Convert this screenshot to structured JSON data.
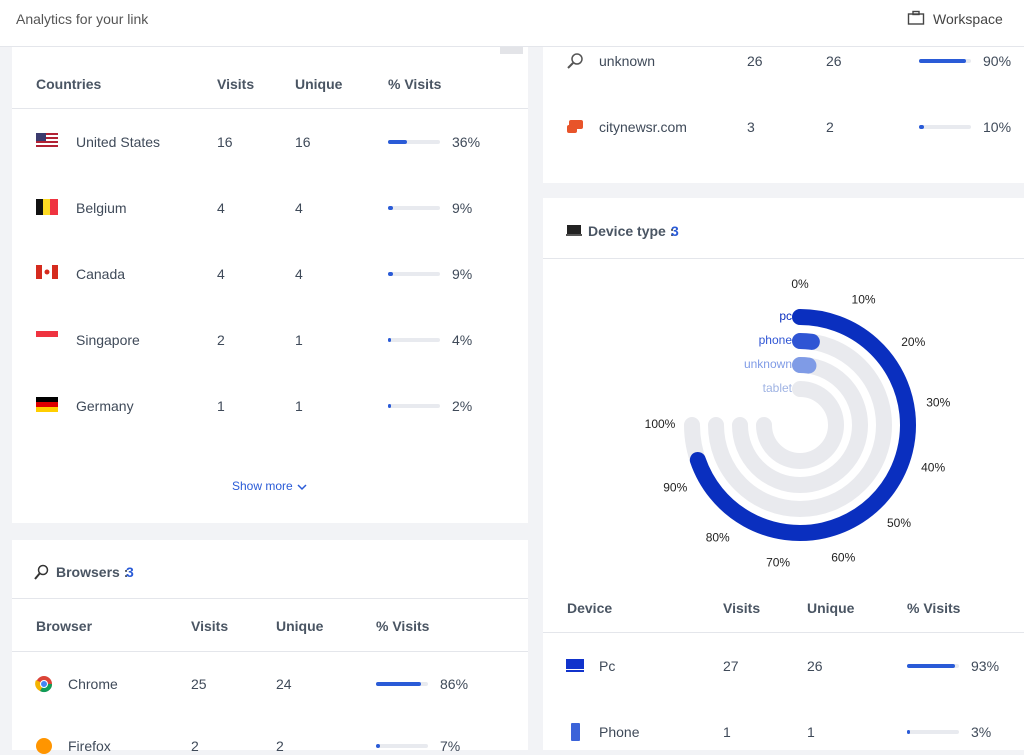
{
  "header": {
    "title": "Analytics for your link",
    "workspace": "Workspace"
  },
  "countries": {
    "columns": [
      "Countries",
      "Visits",
      "Unique",
      "% Visits"
    ],
    "rows": [
      [
        "United States",
        16,
        16,
        "36%"
      ],
      [
        "Belgium",
        4,
        4,
        "9%"
      ],
      [
        "Canada",
        4,
        4,
        "9%"
      ],
      [
        "Singapore",
        2,
        1,
        "4%"
      ],
      [
        "Germany",
        1,
        1,
        "2%"
      ]
    ],
    "show_more": "Show more"
  },
  "browsers": {
    "title": "Browsers :",
    "count": "3",
    "columns": [
      "Browser",
      "Visits",
      "Unique",
      "% Visits"
    ],
    "rows": [
      [
        "Chrome",
        25,
        24,
        "86%"
      ],
      [
        "Firefox",
        2,
        2,
        "7%"
      ]
    ]
  },
  "referrers": {
    "rows": [
      [
        "unknown",
        26,
        26,
        "90%"
      ],
      [
        "citynewsr.com",
        3,
        2,
        "10%"
      ]
    ]
  },
  "devices": {
    "title": "Device type :",
    "count": "3",
    "columns": [
      "Device",
      "Visits",
      "Unique",
      "% Visits"
    ],
    "rows": [
      [
        "Pc",
        27,
        26,
        "93%"
      ],
      [
        "Phone",
        1,
        1,
        "3%"
      ]
    ]
  },
  "chart_data": {
    "type": "radial-bar",
    "categories": [
      "pc",
      "phone",
      "unknown",
      "tablet"
    ],
    "values": [
      93,
      3,
      3,
      0
    ],
    "colors": [
      "#0a2fbf",
      "#2f55d4",
      "#7f9be6",
      "#9fb3e3"
    ],
    "ylim": [
      0,
      100
    ],
    "yticks": [
      {
        "value": 0,
        "label": "0%"
      },
      {
        "value": 10,
        "label": "10%"
      },
      {
        "value": 20,
        "label": "20%"
      },
      {
        "value": 30,
        "label": "30%"
      },
      {
        "value": 40,
        "label": "40%"
      },
      {
        "value": 50,
        "label": "50%"
      },
      {
        "value": 60,
        "label": "60%"
      },
      {
        "value": 70,
        "label": "70%"
      },
      {
        "value": 80,
        "label": "80%"
      },
      {
        "value": 90,
        "label": "90%"
      },
      {
        "value": 100,
        "label": "100%"
      }
    ]
  }
}
